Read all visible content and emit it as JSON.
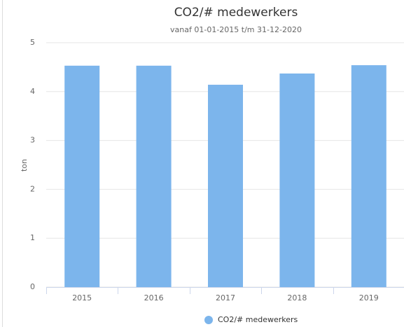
{
  "chart_data": {
    "type": "bar",
    "title": "CO2/# medewerkers",
    "subtitle": "vanaf 01-01-2015 t/m 31-12-2020",
    "y_label": "ton",
    "categories": [
      "2015",
      "2016",
      "2017",
      "2018",
      "2019"
    ],
    "series": [
      {
        "name": "CO2/# medewerkers",
        "color": "#7cb5ec",
        "values": [
          4.53,
          4.53,
          4.14,
          4.37,
          4.54
        ]
      }
    ],
    "ylim": [
      0,
      5
    ],
    "yticks": [
      0,
      1,
      2,
      3,
      4,
      5
    ],
    "grid": true,
    "legend": "bottom"
  }
}
